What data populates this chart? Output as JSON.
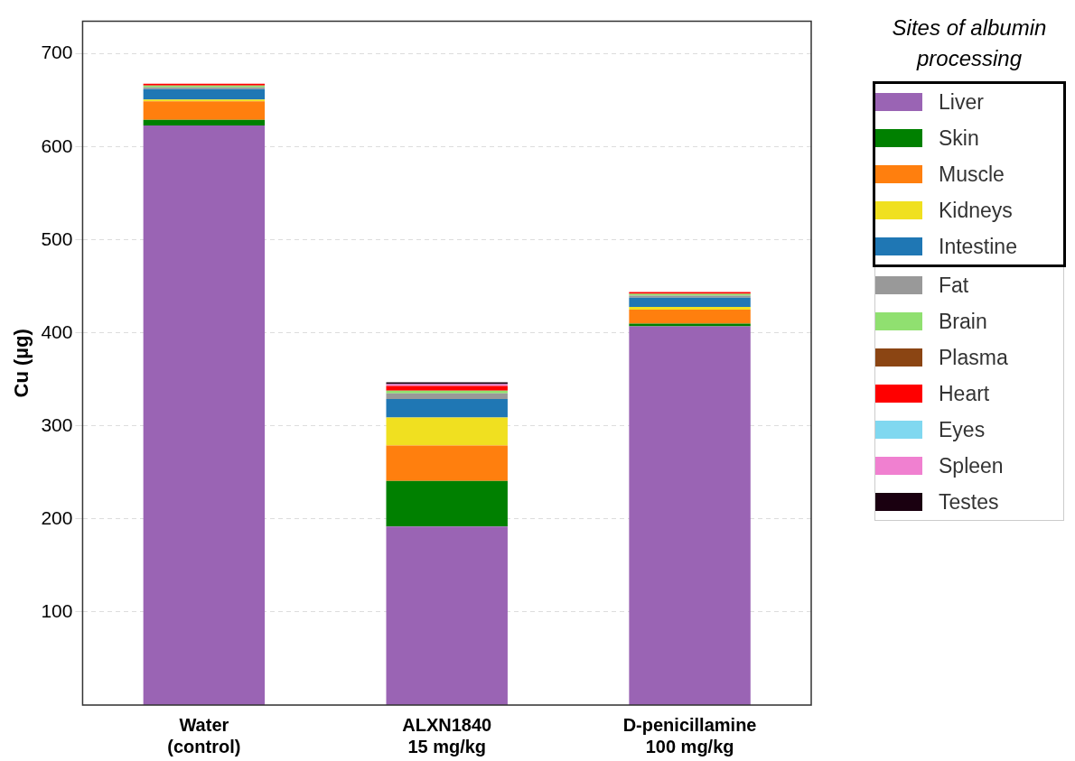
{
  "chart_data": {
    "type": "bar",
    "stacked": true,
    "ylabel": "Cu (µg)",
    "legend_title": "Sites of albumin processing",
    "legend": "right",
    "grid": "y",
    "ylim": [
      0,
      735
    ],
    "yticks": [
      100,
      200,
      300,
      400,
      500,
      600,
      700
    ],
    "categories": [
      "Water\n(control)",
      "ALXN1840\n15 mg/kg",
      "D-penicillamine\n100 mg/kg"
    ],
    "series": [
      {
        "name": "Liver",
        "color": "#9a64b4",
        "values": [
          623,
          192,
          407
        ]
      },
      {
        "name": "Skin",
        "color": "#008000",
        "values": [
          6,
          49,
          3
        ]
      },
      {
        "name": "Muscle",
        "color": "#ff7f0e",
        "values": [
          20,
          38,
          15
        ]
      },
      {
        "name": "Kidneys",
        "color": "#f0e020",
        "values": [
          2,
          30,
          3
        ]
      },
      {
        "name": "Intestine",
        "color": "#1f77b4",
        "values": [
          11,
          20,
          10
        ]
      },
      {
        "name": "Fat",
        "color": "#999999",
        "values": [
          2,
          6,
          2
        ]
      },
      {
        "name": "Brain",
        "color": "#90e070",
        "values": [
          2,
          3,
          2
        ]
      },
      {
        "name": "Plasma",
        "color": "#8b4513",
        "values": [
          null,
          null,
          null
        ]
      },
      {
        "name": "Heart",
        "color": "#ff0000",
        "values": [
          2,
          5,
          2
        ]
      },
      {
        "name": "Eyes",
        "color": "#80d8f0",
        "values": [
          null,
          null,
          null
        ]
      },
      {
        "name": "Spleen",
        "color": "#f080d0",
        "values": [
          null,
          2,
          null
        ]
      },
      {
        "name": "Testes",
        "color": "#1a0010",
        "values": [
          null,
          2,
          null
        ]
      }
    ]
  }
}
